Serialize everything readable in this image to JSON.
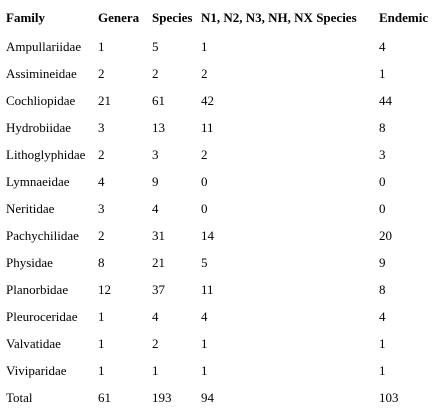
{
  "table": {
    "headers": [
      "Family",
      "Genera",
      "Species",
      "N1, N2, N3, NH, NX Species",
      "Endemic"
    ],
    "rows": [
      [
        "Ampullariidae",
        "1",
        "5",
        "1",
        "4"
      ],
      [
        "Assimineidae",
        "2",
        "2",
        "2",
        "1"
      ],
      [
        "Cochliopidae",
        "21",
        "61",
        "42",
        "44"
      ],
      [
        "Hydrobiidae",
        "3",
        "13",
        "11",
        "8"
      ],
      [
        "Lithoglyphidae",
        "2",
        "3",
        "2",
        "3"
      ],
      [
        "Lymnaeidae",
        "4",
        "9",
        "0",
        "0"
      ],
      [
        "Neritidae",
        "3",
        "4",
        "0",
        "0"
      ],
      [
        "Pachychilidae",
        "2",
        "31",
        "14",
        "20"
      ],
      [
        "Physidae",
        "8",
        "21",
        "5",
        "9"
      ],
      [
        "Planorbidae",
        "12",
        "37",
        "11",
        "8"
      ],
      [
        "Pleuroceridae",
        "1",
        "4",
        "4",
        "4"
      ],
      [
        "Valvatidae",
        "1",
        "2",
        "1",
        "1"
      ],
      [
        "Viviparidae",
        "1",
        "1",
        "1",
        "1"
      ],
      [
        "Total",
        "61",
        "193",
        "94",
        "103"
      ]
    ]
  }
}
